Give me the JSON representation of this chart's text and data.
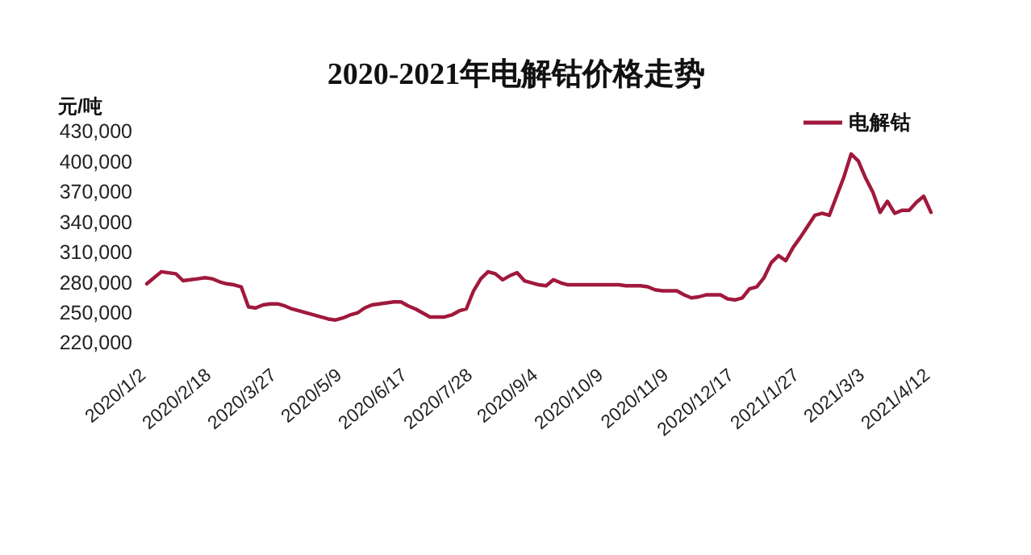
{
  "chart_data": {
    "type": "line",
    "title": "2020-2021年电解钴价格走势",
    "ylabel": "元/吨",
    "categories": [
      "2020/1/2",
      null,
      null,
      null,
      null,
      null,
      null,
      null,
      null,
      "2020/2/18",
      null,
      null,
      null,
      null,
      null,
      null,
      null,
      null,
      "2020/3/27",
      null,
      null,
      null,
      null,
      null,
      null,
      null,
      null,
      "2020/5/9",
      null,
      null,
      null,
      null,
      null,
      null,
      null,
      null,
      "2020/6/17",
      null,
      null,
      null,
      null,
      null,
      null,
      null,
      null,
      "2020/7/28",
      null,
      null,
      null,
      null,
      null,
      null,
      null,
      null,
      "2020/9/4",
      null,
      null,
      null,
      null,
      null,
      null,
      null,
      null,
      "2020/10/9",
      null,
      null,
      null,
      null,
      null,
      null,
      null,
      null,
      "2020/11/9",
      null,
      null,
      null,
      null,
      null,
      null,
      null,
      null,
      "2020/12/17",
      null,
      null,
      null,
      null,
      null,
      null,
      null,
      null,
      "2021/1/27",
      null,
      null,
      null,
      null,
      null,
      null,
      null,
      null,
      "2021/3/3",
      null,
      null,
      null,
      null,
      null,
      null,
      null,
      null,
      "2021/4/12"
    ],
    "series": [
      {
        "name": "电解钴",
        "color": "#a0193c",
        "values": [
          279000,
          285000,
          291000,
          290000,
          289000,
          282000,
          283000,
          284000,
          285000,
          284000,
          281000,
          279000,
          278000,
          276000,
          256000,
          255000,
          258000,
          259000,
          259000,
          257000,
          254000,
          252000,
          250000,
          248000,
          246000,
          244000,
          243000,
          245000,
          248000,
          250000,
          255000,
          258000,
          259000,
          260000,
          261000,
          261000,
          257000,
          254000,
          250000,
          246000,
          246000,
          246000,
          248000,
          252000,
          254000,
          272000,
          284000,
          291000,
          289000,
          283000,
          287000,
          290000,
          282000,
          280000,
          278000,
          277000,
          283000,
          280000,
          278000,
          278000,
          278000,
          278000,
          278000,
          278000,
          278000,
          278000,
          277000,
          277000,
          277000,
          276000,
          273000,
          272000,
          272000,
          272000,
          268000,
          265000,
          266000,
          268000,
          268000,
          268000,
          264000,
          263000,
          265000,
          274000,
          276000,
          285000,
          300000,
          307000,
          302000,
          315000,
          325000,
          336000,
          347000,
          349000,
          347000,
          366000,
          385000,
          408000,
          401000,
          384000,
          370000,
          350000,
          361000,
          349000,
          352000,
          352000,
          360000,
          366000,
          350000
        ]
      }
    ],
    "ylim": [
      220000,
      430000
    ],
    "yticks": [
      {
        "value": 220000,
        "label": "220,000"
      },
      {
        "value": 250000,
        "label": "250,000"
      },
      {
        "value": 280000,
        "label": "280,000"
      },
      {
        "value": 310000,
        "label": "310,000"
      },
      {
        "value": 340000,
        "label": "340,000"
      },
      {
        "value": 370000,
        "label": "370,000"
      },
      {
        "value": 400000,
        "label": "400,000"
      },
      {
        "value": 430000,
        "label": "430,000"
      }
    ],
    "legend": "top right"
  }
}
